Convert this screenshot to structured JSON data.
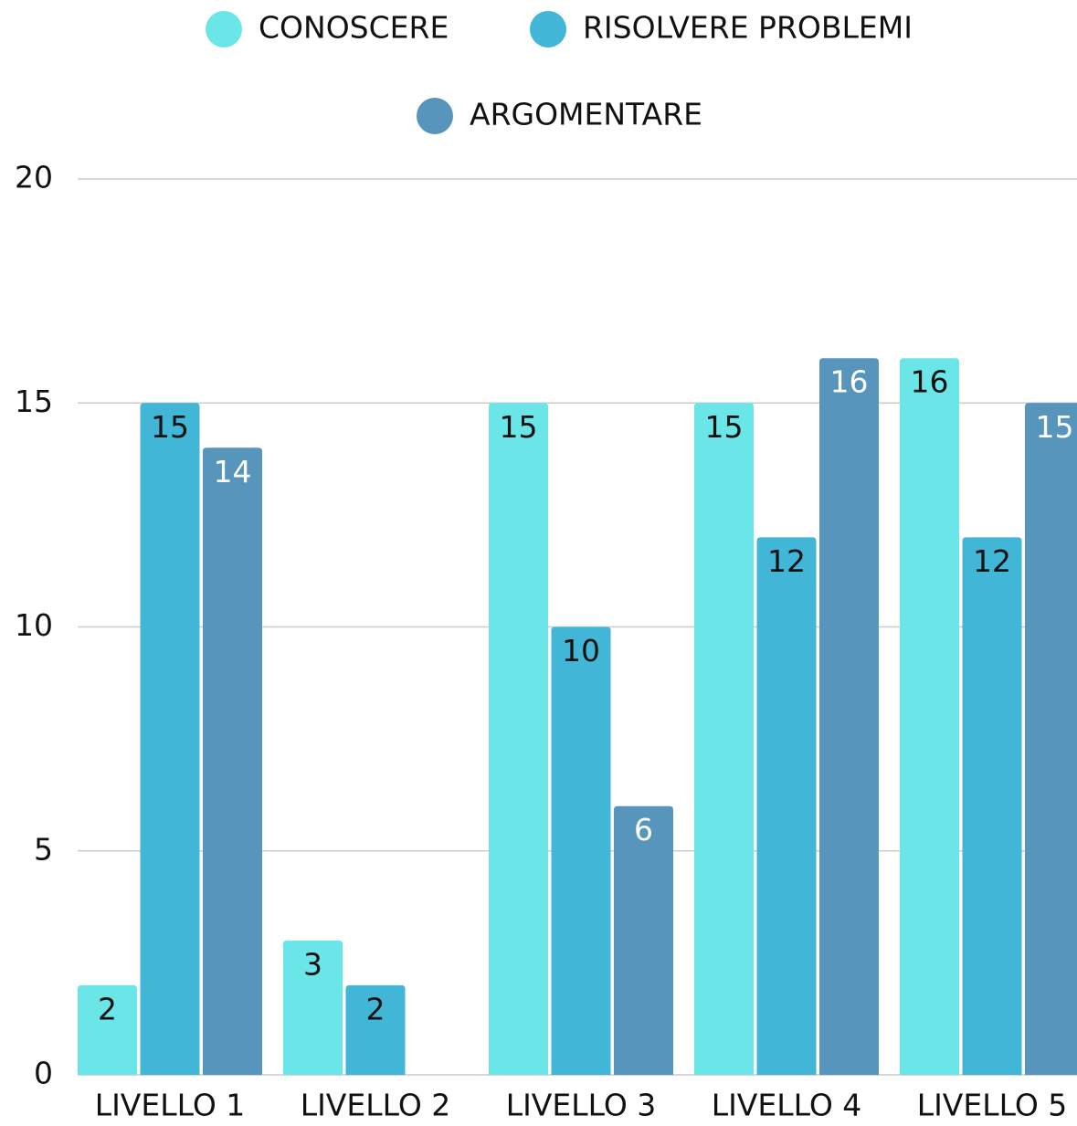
{
  "chart_data": {
    "type": "bar",
    "categories": [
      "LIVELLO 1",
      "LIVELLO 2",
      "LIVELLO 3",
      "LIVELLO 4",
      "LIVELLO 5"
    ],
    "series": [
      {
        "name": "CONOSCERE",
        "color": "#6ae5e8",
        "values": [
          2,
          3,
          15,
          15,
          16
        ]
      },
      {
        "name": "RISOLVERE PROBLEMI",
        "color": "#42b6d6",
        "values": [
          15,
          2,
          10,
          12,
          12
        ]
      },
      {
        "name": "ARGOMENTARE",
        "color": "#5895bc",
        "values": [
          14,
          null,
          6,
          16,
          15
        ]
      }
    ],
    "ylim": [
      0,
      20
    ],
    "yticks": [
      0,
      5,
      10,
      15,
      20
    ],
    "grid": true,
    "legend": "top"
  }
}
